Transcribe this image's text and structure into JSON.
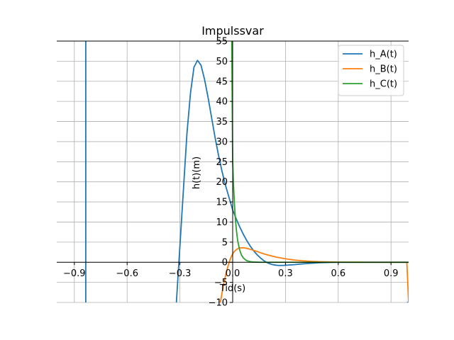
{
  "chart_data": {
    "type": "line",
    "title": "Impulssvar",
    "xlabel": "Tid(s)",
    "ylabel": "h(t)(m)",
    "xlim": [
      -1.0,
      1.0
    ],
    "ylim": [
      -10,
      55
    ],
    "xticks": [
      -0.9,
      -0.6,
      -0.3,
      0.0,
      0.3,
      0.6,
      0.9
    ],
    "xtick_labels": [
      "−0.9",
      "−0.6",
      "−0.3",
      "0.0",
      "0.3",
      "0.6",
      "0.9"
    ],
    "yticks": [
      -10,
      -5,
      0,
      5,
      10,
      15,
      20,
      25,
      30,
      35,
      40,
      45,
      50,
      55
    ],
    "ytick_labels": [
      "−10",
      "−5",
      "0",
      "5",
      "10",
      "15",
      "20",
      "25",
      "30",
      "35",
      "40",
      "45",
      "50",
      "55"
    ],
    "grid": true,
    "legend_position": "top-right",
    "series": [
      {
        "name": "h_A(t)",
        "color": "#1f77b4",
        "segments": [
          {
            "x": [
              -0.835,
              -0.835
            ],
            "y": [
              55,
              -10
            ]
          },
          {
            "x": [
              -0.32,
              -0.3,
              -0.28,
              -0.26,
              -0.24,
              -0.22,
              -0.2,
              -0.18,
              -0.16,
              -0.14,
              -0.12,
              -0.1,
              -0.08,
              -0.06,
              -0.04,
              -0.02,
              0.0,
              0.02,
              0.04,
              0.06,
              0.08,
              0.1,
              0.12,
              0.14,
              0.16,
              0.18,
              0.2,
              0.22,
              0.24,
              0.26,
              0.28,
              0.3,
              0.35,
              0.4,
              0.45,
              0.5,
              0.55,
              0.6,
              0.7,
              0.8,
              0.9,
              1.0
            ],
            "y": [
              -10,
              4,
              18,
              32,
              42,
              48.5,
              50.2,
              49,
              45.5,
              41,
              36,
              31,
              26.5,
              22.5,
              19,
              16,
              13,
              10.8,
              8.8,
              7,
              5.4,
              4.0,
              2.8,
              1.8,
              1.0,
              0.3,
              -0.2,
              -0.5,
              -0.7,
              -0.8,
              -0.8,
              -0.75,
              -0.6,
              -0.4,
              -0.25,
              -0.12,
              -0.05,
              0,
              0,
              0,
              0,
              0
            ]
          },
          {
            "x": [
              0.99,
              1.0
            ],
            "y": [
              -10,
              -10
            ]
          }
        ]
      },
      {
        "name": "h_B(t)",
        "color": "#ff7f0e",
        "segments": [
          {
            "x": [
              -0.07,
              -0.06,
              -0.05,
              -0.04,
              -0.03,
              -0.02,
              -0.01,
              0.0,
              0.01,
              0.02,
              0.03,
              0.04,
              0.05,
              0.06,
              0.07,
              0.08,
              0.09,
              0.1,
              0.12,
              0.15,
              0.18,
              0.2,
              0.25,
              0.3,
              0.35,
              0.4,
              0.45,
              0.5,
              0.55,
              0.6,
              0.7,
              0.8,
              0.9,
              0.99
            ],
            "y": [
              -10,
              -7.5,
              -5.2,
              -3.2,
              -1.5,
              0,
              1.2,
              2.1,
              2.7,
              3.1,
              3.4,
              3.55,
              3.6,
              3.6,
              3.55,
              3.45,
              3.35,
              3.2,
              2.95,
              2.5,
              2.05,
              1.8,
              1.25,
              0.85,
              0.55,
              0.35,
              0.22,
              0.13,
              0.08,
              0.04,
              0.01,
              0,
              0,
              0
            ]
          },
          {
            "x": [
              0.99,
              1.0
            ],
            "y": [
              0,
              -10
            ]
          }
        ]
      },
      {
        "name": "h_C(t)",
        "color": "#2ca02c",
        "segments": [
          {
            "x": [
              -0.005,
              -0.003,
              -0.001,
              0.0,
              0.005,
              0.01,
              0.015,
              0.02,
              0.025,
              0.03,
              0.04,
              0.05,
              0.06,
              0.07,
              0.08,
              0.1,
              0.12,
              0.15,
              0.2,
              0.3,
              0.5,
              1.0
            ],
            "y": [
              55,
              42,
              30,
              25,
              19,
              14.5,
              11,
              8.5,
              6.5,
              5,
              3,
              1.8,
              1.1,
              0.7,
              0.4,
              0.15,
              0.05,
              0.01,
              0,
              0,
              0,
              0
            ]
          }
        ]
      }
    ]
  }
}
